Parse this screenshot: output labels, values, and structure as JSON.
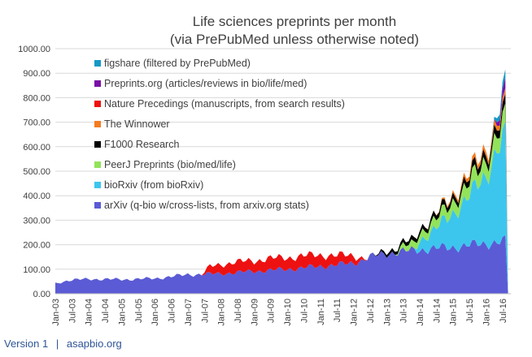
{
  "chart_data": {
    "type": "area",
    "stacked": true,
    "title_line1": "Life sciences preprints per month",
    "title_line2": "(via PrePubMed unless otherwise noted)",
    "ylim": [
      0,
      1000
    ],
    "y_ticks": [
      "0.00",
      "100.00",
      "200.00",
      "300.00",
      "400.00",
      "500.00",
      "600.00",
      "700.00",
      "800.00",
      "900.00",
      "1000.00"
    ],
    "x_ticks": [
      "Jan-03",
      "Jul-03",
      "Jan-04",
      "Jul-04",
      "Jan-05",
      "Jul-05",
      "Jan-06",
      "Jul-06",
      "Jan-07",
      "Jul-07",
      "Jan-08",
      "Jul-08",
      "Jan-09",
      "Jul-09",
      "Jan-10",
      "Jul-10",
      "Jan-11",
      "Jul-11",
      "Jan-12",
      "Jul-12",
      "Jan-13",
      "Jul-13",
      "Jan-14",
      "Jul-14",
      "Jan-15",
      "Jul-15",
      "Jan-16",
      "Jul-16"
    ],
    "grid": true,
    "legend_position": "top-left",
    "series": [
      {
        "name": "figshare (filtered by PrePubMed)",
        "color": "#1599c6",
        "points": [
          [
            "2016-02",
            0
          ],
          [
            "2016-04",
            10
          ],
          [
            "2016-06",
            25
          ],
          [
            "2016-08",
            30
          ]
        ]
      },
      {
        "name": "Preprints.org (articles/reviews in bio/life/med)",
        "color": "#7a0fa8",
        "points": [
          [
            "2016-04",
            0
          ],
          [
            "2016-05",
            15
          ],
          [
            "2016-08",
            40
          ]
        ]
      },
      {
        "name": "Nature Precedings (manuscripts, from search results)",
        "color": "#ee1111",
        "points": [
          [
            "2007-06",
            0
          ],
          [
            "2007-09",
            30
          ],
          [
            "2008-01",
            35
          ],
          [
            "2008-06",
            45
          ],
          [
            "2009-01",
            40
          ],
          [
            "2009-06",
            50
          ],
          [
            "2010-01",
            45
          ],
          [
            "2010-06",
            50
          ],
          [
            "2011-01",
            45
          ],
          [
            "2011-06",
            40
          ],
          [
            "2012-01",
            30
          ],
          [
            "2012-04",
            10
          ],
          [
            "2012-06",
            0
          ]
        ]
      },
      {
        "name": "The Winnower",
        "color": "#f47b20",
        "points": [
          [
            "2014-06",
            0
          ],
          [
            "2014-09",
            5
          ],
          [
            "2015-06",
            15
          ],
          [
            "2016-01",
            20
          ],
          [
            "2016-08",
            20
          ]
        ]
      },
      {
        "name": "F1000 Research",
        "color": "#000000",
        "points": [
          [
            "2012-08",
            0
          ],
          [
            "2013-01",
            12
          ],
          [
            "2014-01",
            18
          ],
          [
            "2015-01",
            22
          ],
          [
            "2016-01",
            30
          ],
          [
            "2016-08",
            35
          ]
        ]
      },
      {
        "name": "PeerJ Preprints (bio/med/life)",
        "color": "#92e35a",
        "points": [
          [
            "2013-04",
            0
          ],
          [
            "2013-07",
            20
          ],
          [
            "2014-01",
            30
          ],
          [
            "2015-01",
            45
          ],
          [
            "2016-01",
            60
          ],
          [
            "2016-08",
            65
          ]
        ]
      },
      {
        "name": "bioRxiv (from bioRxiv)",
        "color": "#3cc6ee",
        "points": [
          [
            "2013-11",
            0
          ],
          [
            "2014-01",
            40
          ],
          [
            "2014-07",
            80
          ],
          [
            "2015-01",
            140
          ],
          [
            "2015-07",
            200
          ],
          [
            "2016-01",
            280
          ],
          [
            "2016-05",
            380
          ],
          [
            "2016-08",
            420
          ]
        ]
      },
      {
        "name": "arXiv (q-bio w/cross-lists, from arxiv.org stats)",
        "color": "#5b5bd6",
        "points": [
          [
            "2003-01",
            42
          ],
          [
            "2003-06",
            55
          ],
          [
            "2004-01",
            60
          ],
          [
            "2005-01",
            58
          ],
          [
            "2006-01",
            62
          ],
          [
            "2007-01",
            78
          ],
          [
            "2008-01",
            82
          ],
          [
            "2009-01",
            92
          ],
          [
            "2010-01",
            100
          ],
          [
            "2011-01",
            112
          ],
          [
            "2012-01",
            125
          ],
          [
            "2012-07",
            150
          ],
          [
            "2013-01",
            165
          ],
          [
            "2014-01",
            180
          ],
          [
            "2015-01",
            190
          ],
          [
            "2016-01",
            205
          ],
          [
            "2016-08",
            215
          ]
        ]
      }
    ]
  },
  "footer": {
    "version": "Version 1",
    "separator": "|",
    "site": "asapbio.org"
  }
}
